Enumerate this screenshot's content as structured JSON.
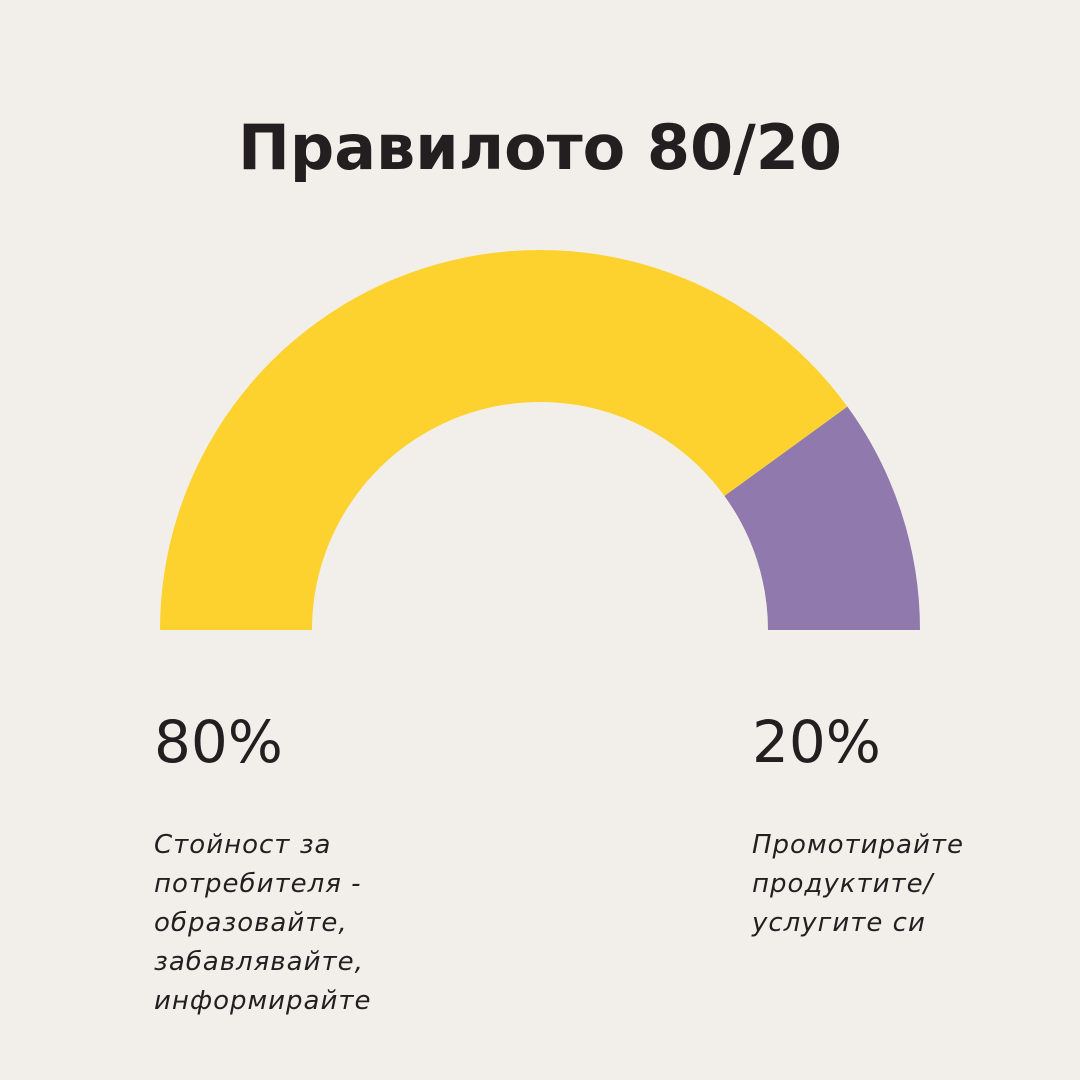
{
  "title": "Правилото 80/20",
  "colors": {
    "background": "#f2efeb",
    "text": "#231f20",
    "segment_value": "#fdd22f",
    "segment_promote": "#8f79ad"
  },
  "chart_data": {
    "type": "pie",
    "variant": "semicircle-donut",
    "title": "Правилото 80/20",
    "slices": [
      {
        "label": "80%",
        "value": 80,
        "color": "#fdd22f"
      },
      {
        "label": "20%",
        "value": 20,
        "color": "#8f79ad"
      }
    ]
  },
  "left": {
    "percent": "80%",
    "description": [
      "Стойност за",
      "потребителя -",
      "образовайте,",
      "забавлявайте,",
      "информирайте"
    ]
  },
  "right": {
    "percent": "20%",
    "description": [
      "Промотирайте",
      "продуктите/",
      "услугите си"
    ]
  }
}
